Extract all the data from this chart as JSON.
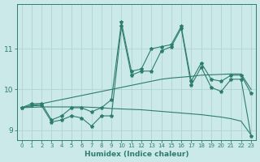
{
  "x": [
    0,
    1,
    2,
    3,
    4,
    5,
    6,
    7,
    8,
    9,
    10,
    11,
    12,
    13,
    14,
    15,
    16,
    17,
    18,
    19,
    20,
    21,
    22,
    23
  ],
  "line_main": [
    9.55,
    9.65,
    9.65,
    9.25,
    9.35,
    9.55,
    9.55,
    9.45,
    9.55,
    9.75,
    11.65,
    10.45,
    10.5,
    11.0,
    11.05,
    11.1,
    11.55,
    10.2,
    10.65,
    10.25,
    10.2,
    10.35,
    10.35,
    9.9
  ],
  "line_secondary": [
    9.55,
    9.6,
    9.6,
    9.2,
    9.25,
    9.35,
    9.3,
    9.1,
    9.35,
    9.35,
    11.55,
    10.35,
    10.45,
    10.45,
    10.95,
    11.05,
    11.5,
    10.1,
    10.55,
    10.05,
    9.95,
    10.25,
    10.25,
    8.85
  ],
  "line_trend_up": [
    9.55,
    9.6,
    9.65,
    9.7,
    9.75,
    9.8,
    9.85,
    9.9,
    9.95,
    10.0,
    10.05,
    10.1,
    10.15,
    10.2,
    10.25,
    10.28,
    10.3,
    10.32,
    10.35,
    10.36,
    10.37,
    10.38,
    10.38,
    10.0
  ],
  "line_trend_flat": [
    9.55,
    9.56,
    9.57,
    9.57,
    9.57,
    9.57,
    9.57,
    9.56,
    9.55,
    9.53,
    9.52,
    9.51,
    9.5,
    9.48,
    9.46,
    9.44,
    9.42,
    9.4,
    9.38,
    9.35,
    9.32,
    9.28,
    9.22,
    8.88
  ],
  "color": "#2d7d6e",
  "bg_color": "#cce9e9",
  "grid_color": "#afd4d4",
  "xlabel": "Humidex (Indice chaleur)",
  "ylim": [
    8.75,
    12.1
  ],
  "xlim": [
    -0.5,
    23.5
  ],
  "yticks": [
    9,
    10,
    11
  ],
  "xticks": [
    0,
    1,
    2,
    3,
    4,
    5,
    6,
    7,
    8,
    9,
    10,
    11,
    12,
    13,
    14,
    15,
    16,
    17,
    18,
    19,
    20,
    21,
    22,
    23
  ]
}
